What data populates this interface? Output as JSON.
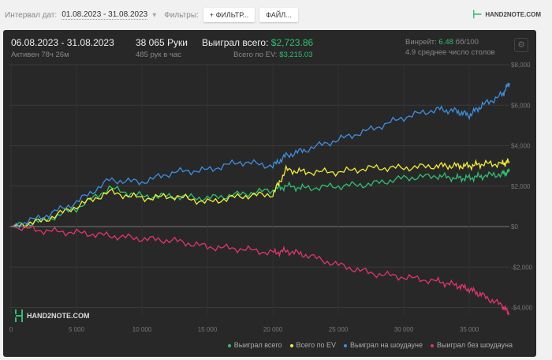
{
  "toolbar": {
    "interval_label": "Интервал дат:",
    "interval_value": "01.08.2023 - 31.08.2023",
    "filters_label": "Фильтры:",
    "filter_button": "ФИЛЬТР...",
    "file_button": "ФАЙЛ...",
    "logo": "HAND2NOTE.COM"
  },
  "summary": {
    "period": "06.08.2023 - 31.08.2023",
    "active": "Активен 78ч 26м",
    "hands": "38 065 Руки",
    "hands_per_hour": "485 рук в час",
    "won_label": "Выиграл всего:",
    "won_value": "$2,723.86",
    "ev_label": "Всего по EV:",
    "ev_value": "$3,215.03",
    "winrate_label": "Винрейт:",
    "winrate_value": "6.48",
    "winrate_unit": "бб/100",
    "tables": "4.9 среднее число столов"
  },
  "colors": {
    "green": "#2fbf71",
    "yellow": "#f2ef3a",
    "blue": "#3d8fe0",
    "red": "#e0356a"
  },
  "chart_data": {
    "type": "line",
    "xlim": [
      0,
      38065
    ],
    "ylim": [
      -4500,
      8000
    ],
    "grid": true,
    "legend": "bottom-right",
    "watermark": "HAND2NOTE.COM",
    "xticks": [
      0,
      5000,
      10000,
      15000,
      20000,
      25000,
      30000,
      35000
    ],
    "xtick_labels": [
      "0",
      "5 000",
      "10 000",
      "15 000",
      "20 000",
      "25 000",
      "30 000",
      "35 000"
    ],
    "yticks": [
      8000,
      6000,
      4000,
      2000,
      0,
      -2000,
      -4000
    ],
    "ytick_labels": [
      "$8,000",
      "$6,000",
      "$4,000",
      "$2,000",
      "$0",
      "-$2,000",
      "-$4,000"
    ],
    "x": [
      0,
      2500,
      5000,
      7500,
      10000,
      12500,
      15000,
      17500,
      20000,
      21000,
      22500,
      25000,
      27500,
      30000,
      32500,
      34000,
      35000,
      36000,
      37500,
      38065
    ],
    "series": [
      {
        "name": "Выиграл всего",
        "color": "#2fbf71",
        "values": [
          0,
          300,
          900,
          1900,
          1500,
          1500,
          1400,
          1600,
          1800,
          2000,
          1900,
          2000,
          2100,
          2400,
          2500,
          2400,
          2400,
          2500,
          2600,
          2724
        ]
      },
      {
        "name": "Всего по EV",
        "color": "#f2ef3a",
        "values": [
          0,
          300,
          1000,
          1700,
          1400,
          1500,
          1200,
          1500,
          1600,
          2800,
          2700,
          2700,
          2900,
          2900,
          3000,
          3000,
          3000,
          3100,
          3100,
          3215
        ]
      },
      {
        "name": "Выиграл на шоудауне",
        "color": "#3d8fe0",
        "values": [
          0,
          500,
          1200,
          2300,
          2200,
          2700,
          2800,
          3200,
          3000,
          3500,
          3800,
          4300,
          4800,
          5400,
          5800,
          5700,
          5500,
          6000,
          6500,
          7100
        ]
      },
      {
        "name": "Выиграл без шоудауна",
        "color": "#e0356a",
        "values": [
          0,
          -200,
          -300,
          -450,
          -600,
          -700,
          -1000,
          -1100,
          -1300,
          -1200,
          -1400,
          -1900,
          -2300,
          -2500,
          -2700,
          -2900,
          -3100,
          -3400,
          -3900,
          -4300
        ]
      }
    ]
  }
}
